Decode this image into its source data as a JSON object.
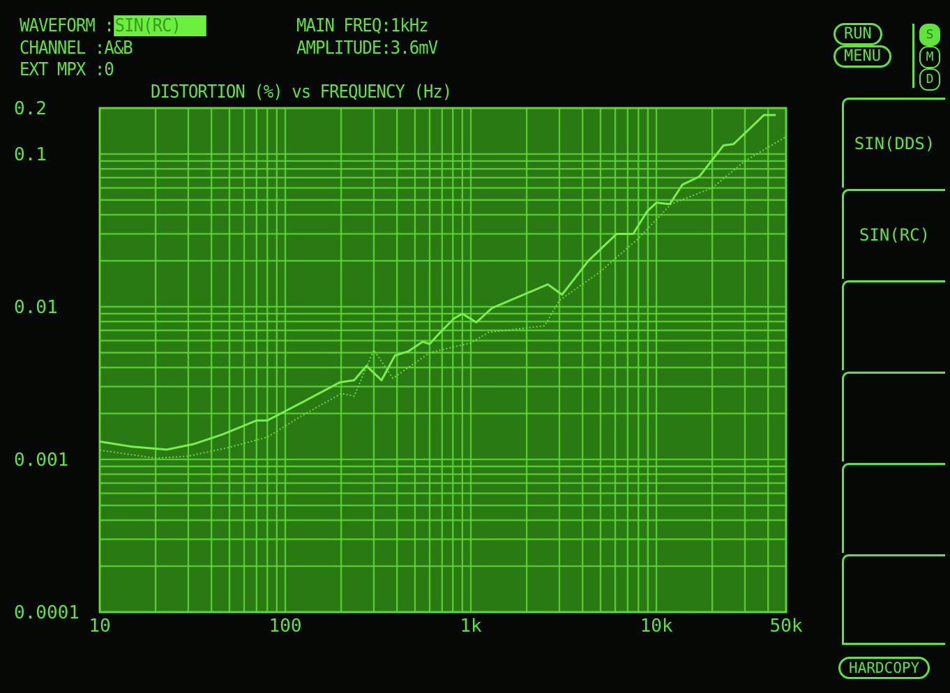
{
  "header": {
    "waveform_label": "WAVEFORM",
    "waveform_value": "SIN(RC)",
    "channel_label": "CHANNEL",
    "channel_value": "A&B",
    "ext_mpx_label": "EXT MPX",
    "ext_mpx_value": "0",
    "main_freq": "MAIN FREQ:1kHz",
    "amplitude": "AMPLITUDE:3.6mV"
  },
  "controls": {
    "run": "RUN",
    "menu": "MENU",
    "modes": [
      "S",
      "M",
      "D"
    ],
    "active_mode": "S",
    "hardcopy": "HARDCOPY"
  },
  "softkeys": [
    "SIN(DDS)",
    "SIN(RC)",
    "",
    "",
    "",
    ""
  ],
  "colors": {
    "trace": "#7cf04a",
    "grid": "#5ed834",
    "plot_bg": "#2a7a14",
    "text": "#5fe43a"
  },
  "chart_data": {
    "type": "line",
    "title": "DISTORTION (%) vs FREQUENCY (Hz)",
    "x_scale": "log",
    "y_scale": "log",
    "xlim": [
      10,
      50000
    ],
    "ylim": [
      0.0001,
      0.2
    ],
    "x_ticks": [
      {
        "v": 10,
        "label": "10"
      },
      {
        "v": 100,
        "label": "100"
      },
      {
        "v": 1000,
        "label": "1k"
      },
      {
        "v": 10000,
        "label": "10k"
      },
      {
        "v": 50000,
        "label": "50k"
      }
    ],
    "y_ticks": [
      {
        "v": 0.2,
        "label": "0.2"
      },
      {
        "v": 0.1,
        "label": "0.1"
      },
      {
        "v": 0.01,
        "label": "0.01"
      },
      {
        "v": 0.001,
        "label": "0.001"
      },
      {
        "v": 0.0001,
        "label": "0.0001"
      }
    ],
    "grid": true,
    "series": [
      {
        "style": "solid",
        "points": [
          [
            10,
            0.00131
          ],
          [
            15,
            0.00121
          ],
          [
            23,
            0.00116
          ],
          [
            32,
            0.00126
          ],
          [
            46,
            0.00146
          ],
          [
            70,
            0.0018
          ],
          [
            80,
            0.0018
          ],
          [
            118,
            0.0023
          ],
          [
            197,
            0.0032
          ],
          [
            235,
            0.0033
          ],
          [
            274,
            0.0041
          ],
          [
            330,
            0.0033
          ],
          [
            390,
            0.0048
          ],
          [
            460,
            0.0051
          ],
          [
            550,
            0.0059
          ],
          [
            600,
            0.0057
          ],
          [
            685,
            0.0068
          ],
          [
            815,
            0.0084
          ],
          [
            900,
            0.009
          ],
          [
            1070,
            0.0079
          ],
          [
            1300,
            0.0098
          ],
          [
            2600,
            0.014
          ],
          [
            3100,
            0.012
          ],
          [
            4300,
            0.02
          ],
          [
            6100,
            0.03
          ],
          [
            7500,
            0.03
          ],
          [
            8900,
            0.042
          ],
          [
            10000,
            0.048
          ],
          [
            11800,
            0.047
          ],
          [
            13800,
            0.063
          ],
          [
            17000,
            0.071
          ],
          [
            23000,
            0.114
          ],
          [
            26000,
            0.116
          ],
          [
            38000,
            0.18
          ],
          [
            44000,
            0.18
          ]
        ]
      },
      {
        "style": "dotted",
        "points": [
          [
            10,
            0.00115
          ],
          [
            20,
            0.00102
          ],
          [
            30,
            0.00105
          ],
          [
            50,
            0.0012
          ],
          [
            80,
            0.0014
          ],
          [
            120,
            0.0019
          ],
          [
            200,
            0.0027
          ],
          [
            235,
            0.0026
          ],
          [
            300,
            0.0052
          ],
          [
            380,
            0.0034
          ],
          [
            600,
            0.005
          ],
          [
            1000,
            0.0058
          ],
          [
            1250,
            0.0068
          ],
          [
            2500,
            0.0075
          ],
          [
            3000,
            0.011
          ],
          [
            5000,
            0.017
          ],
          [
            8000,
            0.028
          ],
          [
            12000,
            0.047
          ],
          [
            20000,
            0.06
          ],
          [
            30000,
            0.09
          ],
          [
            50000,
            0.13
          ]
        ]
      }
    ]
  }
}
